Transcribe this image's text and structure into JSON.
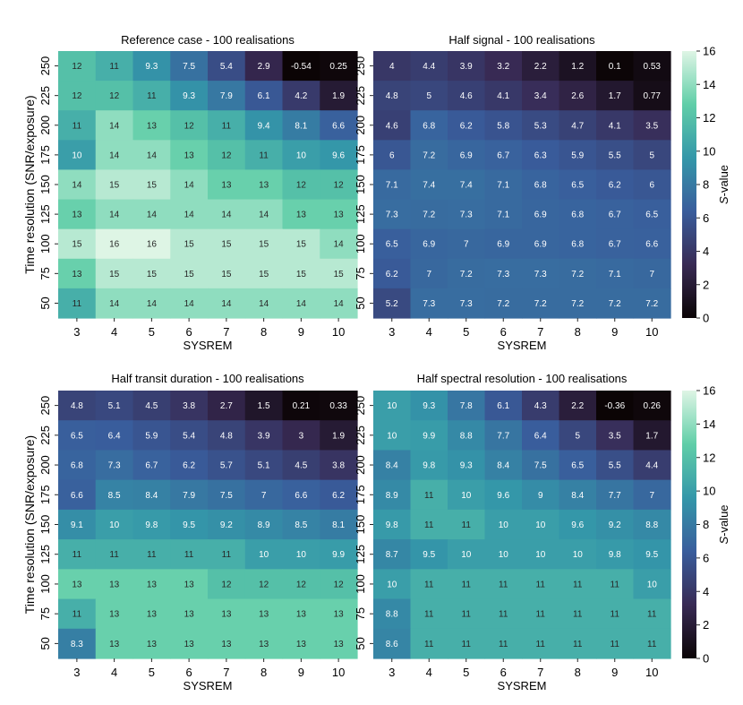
{
  "figure": {
    "shared": {
      "xlabel": "SYSREM",
      "ylabel": "Time resolution (SNR/exposure)",
      "colorbar_label": "S-value",
      "colorbar_label_italic_part": "S",
      "colorbar_label_rest": "-value",
      "colorbar_ticks": [
        0,
        2,
        4,
        6,
        8,
        10,
        12,
        14,
        16
      ],
      "colorbar_range": [
        0,
        16
      ],
      "colormap": [
        "#0b0405",
        "#382a54",
        "#395d9c",
        "#3497a9",
        "#60cea8",
        "#def5e5"
      ]
    }
  },
  "chart_data": [
    {
      "type": "heatmap",
      "title": "Reference case - 100 realisations",
      "xlabel": "SYSREM",
      "ylabel": "Time resolution (SNR/exposure)",
      "x": [
        "3",
        "4",
        "5",
        "6",
        "7",
        "8",
        "9",
        "10"
      ],
      "y": [
        "250",
        "225",
        "200",
        "175",
        "150",
        "125",
        "100",
        "75",
        "50"
      ],
      "values": [
        [
          12,
          11,
          9.3,
          7.5,
          5.4,
          2.9,
          -0.54,
          0.25
        ],
        [
          12,
          12,
          11,
          9.3,
          7.9,
          6.1,
          4.2,
          1.9
        ],
        [
          11,
          14,
          13,
          12,
          11,
          9.4,
          8.1,
          6.6
        ],
        [
          10,
          14,
          14,
          13,
          12,
          11,
          10,
          9.6
        ],
        [
          14,
          15,
          15,
          14,
          13,
          13,
          12,
          12
        ],
        [
          13,
          14,
          14,
          14,
          14,
          14,
          13,
          13
        ],
        [
          15,
          16,
          16,
          15,
          15,
          15,
          15,
          14
        ],
        [
          13,
          15,
          15,
          15,
          15,
          15,
          15,
          15
        ],
        [
          11,
          14,
          14,
          14,
          14,
          14,
          14,
          14
        ]
      ],
      "vlim": [
        0,
        16
      ]
    },
    {
      "type": "heatmap",
      "title": "Half signal - 100 realisations",
      "xlabel": "SYSREM",
      "ylabel": "",
      "x": [
        "3",
        "4",
        "5",
        "6",
        "7",
        "8",
        "9",
        "10"
      ],
      "y": [
        "250",
        "225",
        "200",
        "175",
        "150",
        "125",
        "100",
        "75",
        "50"
      ],
      "values": [
        [
          4,
          4.4,
          3.9,
          3.2,
          2.2,
          1.2,
          0.1,
          0.53
        ],
        [
          4.8,
          5,
          4.6,
          4.1,
          3.4,
          2.6,
          1.7,
          0.77
        ],
        [
          4.6,
          6.8,
          6.2,
          5.8,
          5.3,
          4.7,
          4.1,
          3.5
        ],
        [
          6,
          7.2,
          6.9,
          6.7,
          6.3,
          5.9,
          5.5,
          5
        ],
        [
          7.1,
          7.4,
          7.4,
          7.1,
          6.8,
          6.5,
          6.2,
          6
        ],
        [
          7.3,
          7.2,
          7.3,
          7.1,
          6.9,
          6.8,
          6.7,
          6.5
        ],
        [
          6.5,
          6.9,
          7,
          6.9,
          6.9,
          6.8,
          6.7,
          6.6
        ],
        [
          6.2,
          7,
          7.2,
          7.3,
          7.3,
          7.2,
          7.1,
          7
        ],
        [
          5.2,
          7.3,
          7.3,
          7.2,
          7.2,
          7.2,
          7.2,
          7.2
        ]
      ],
      "vlim": [
        0,
        16
      ]
    },
    {
      "type": "heatmap",
      "title": "Half transit duration - 100 realisations",
      "xlabel": "SYSREM",
      "ylabel": "Time resolution (SNR/exposure)",
      "x": [
        "3",
        "4",
        "5",
        "6",
        "7",
        "8",
        "9",
        "10"
      ],
      "y": [
        "250",
        "225",
        "200",
        "175",
        "150",
        "125",
        "100",
        "75",
        "50"
      ],
      "values": [
        [
          4.8,
          5.1,
          4.5,
          3.8,
          2.7,
          1.5,
          0.21,
          0.33
        ],
        [
          6.5,
          6.4,
          5.9,
          5.4,
          4.8,
          3.9,
          3,
          1.9
        ],
        [
          6.8,
          7.3,
          6.7,
          6.2,
          5.7,
          5.1,
          4.5,
          3.8
        ],
        [
          6.6,
          8.5,
          8.4,
          7.9,
          7.5,
          7,
          6.6,
          6.2
        ],
        [
          9.1,
          10,
          9.8,
          9.5,
          9.2,
          8.9,
          8.5,
          8.1
        ],
        [
          11,
          11,
          11,
          11,
          11,
          10,
          10,
          9.9
        ],
        [
          13,
          13,
          13,
          13,
          12,
          12,
          12,
          12
        ],
        [
          11,
          13,
          13,
          13,
          13,
          13,
          13,
          13
        ],
        [
          8.3,
          13,
          13,
          13,
          13,
          13,
          13,
          13
        ]
      ],
      "vlim": [
        0,
        16
      ]
    },
    {
      "type": "heatmap",
      "title": "Half spectral resolution - 100 realisations",
      "xlabel": "SYSREM",
      "ylabel": "",
      "x": [
        "3",
        "4",
        "5",
        "6",
        "7",
        "8",
        "9",
        "10"
      ],
      "y": [
        "250",
        "225",
        "200",
        "175",
        "150",
        "125",
        "100",
        "75",
        "50"
      ],
      "values": [
        [
          10,
          9.3,
          7.8,
          6.1,
          4.3,
          2.2,
          -0.36,
          0.26
        ],
        [
          10,
          9.9,
          8.8,
          7.7,
          6.4,
          5,
          3.5,
          1.7
        ],
        [
          8.4,
          9.8,
          9.3,
          8.4,
          7.5,
          6.5,
          5.5,
          4.4
        ],
        [
          8.9,
          11,
          10,
          9.6,
          9,
          8.4,
          7.7,
          7
        ],
        [
          9.8,
          11,
          11,
          10,
          10,
          9.6,
          9.2,
          8.8
        ],
        [
          8.7,
          9.5,
          10,
          10,
          10,
          10,
          9.8,
          9.5
        ],
        [
          10,
          11,
          11,
          11,
          11,
          11,
          11,
          10
        ],
        [
          8.8,
          11,
          11,
          11,
          11,
          11,
          11,
          11
        ],
        [
          8.6,
          11,
          11,
          11,
          11,
          11,
          11,
          11
        ]
      ],
      "vlim": [
        0,
        16
      ]
    }
  ]
}
